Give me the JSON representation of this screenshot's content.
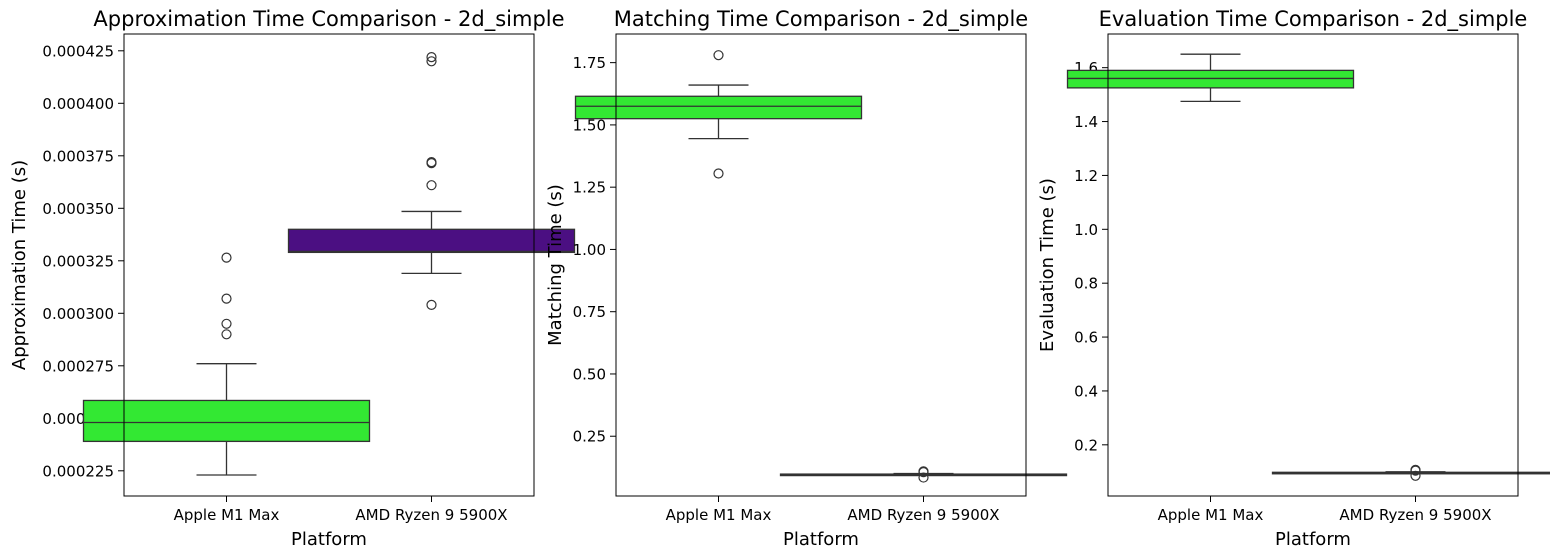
{
  "chart_data": [
    {
      "type": "box",
      "title": "Approximation Time Comparison - 2d_simple",
      "xlabel": "Platform",
      "ylabel": "Approximation Time (s)",
      "categories": [
        "Apple M1 Max",
        "AMD Ryzen 9 5900X"
      ],
      "ylim": [
        0.000213,
        0.000433
      ],
      "yticks": [
        0.000225,
        0.00025,
        0.000275,
        0.0003,
        0.000325,
        0.00035,
        0.000375,
        0.0004,
        0.000425
      ],
      "ytick_labels": [
        "0.000225",
        "0.000250",
        "0.000275",
        "0.000300",
        "0.000325",
        "0.000350",
        "0.000375",
        "0.000400",
        "0.000425"
      ],
      "grid": false,
      "boxes": [
        {
          "category": "Apple M1 Max",
          "color": "#33e833",
          "whislo": 0.000223,
          "q1": 0.000239,
          "med": 0.000248,
          "q3": 0.0002585,
          "whishi": 0.000276,
          "fliers": [
            0.00029,
            0.000295,
            0.000307,
            0.0003265
          ]
        },
        {
          "category": "AMD Ryzen 9 5900X",
          "color": "#4b0f82",
          "whislo": 0.000319,
          "q1": 0.000329,
          "med": 0.0003295,
          "q3": 0.00034,
          "whishi": 0.0003485,
          "fliers": [
            0.000304,
            0.000361,
            0.0003715,
            0.000372,
            0.00042,
            0.000422
          ]
        }
      ]
    },
    {
      "type": "box",
      "title": "Matching Time Comparison - 2d_simple",
      "xlabel": "Platform",
      "ylabel": "Matching Time (s)",
      "categories": [
        "Apple M1 Max",
        "AMD Ryzen 9 5900X"
      ],
      "ylim": [
        0.01,
        1.865
      ],
      "yticks": [
        0.25,
        0.5,
        0.75,
        1.0,
        1.25,
        1.5,
        1.75
      ],
      "ytick_labels": [
        "0.25",
        "0.50",
        "0.75",
        "1.00",
        "1.25",
        "1.50",
        "1.75"
      ],
      "grid": false,
      "boxes": [
        {
          "category": "Apple M1 Max",
          "color": "#33e833",
          "whislo": 1.445,
          "q1": 1.525,
          "med": 1.575,
          "q3": 1.615,
          "whishi": 1.66,
          "fliers": [
            1.305,
            1.78
          ]
        },
        {
          "category": "AMD Ryzen 9 5900X",
          "color": "#4b0f82",
          "whislo": 0.093,
          "q1": 0.095,
          "med": 0.096,
          "q3": 0.098,
          "whishi": 0.1,
          "fliers": [
            0.084,
            0.106,
            0.109
          ]
        }
      ]
    },
    {
      "type": "box",
      "title": "Evaluation Time Comparison - 2d_simple",
      "xlabel": "Platform",
      "ylabel": "Evaluation Time (s)",
      "categories": [
        "Apple M1 Max",
        "AMD Ryzen 9 5900X"
      ],
      "ylim": [
        0.01,
        1.725
      ],
      "yticks": [
        0.2,
        0.4,
        0.6,
        0.8,
        1.0,
        1.2,
        1.4,
        1.6
      ],
      "ytick_labels": [
        "0.2",
        "0.4",
        "0.6",
        "0.8",
        "1.0",
        "1.2",
        "1.4",
        "1.6"
      ],
      "grid": false,
      "boxes": [
        {
          "category": "Apple M1 Max",
          "color": "#33e833",
          "whislo": 1.475,
          "q1": 1.525,
          "med": 1.56,
          "q3": 1.59,
          "whishi": 1.65,
          "fliers": []
        },
        {
          "category": "AMD Ryzen 9 5900X",
          "color": "#4b0f82",
          "whislo": 0.094,
          "q1": 0.095,
          "med": 0.096,
          "q3": 0.098,
          "whishi": 0.1,
          "fliers": [
            0.085,
            0.104,
            0.107
          ]
        }
      ]
    }
  ]
}
